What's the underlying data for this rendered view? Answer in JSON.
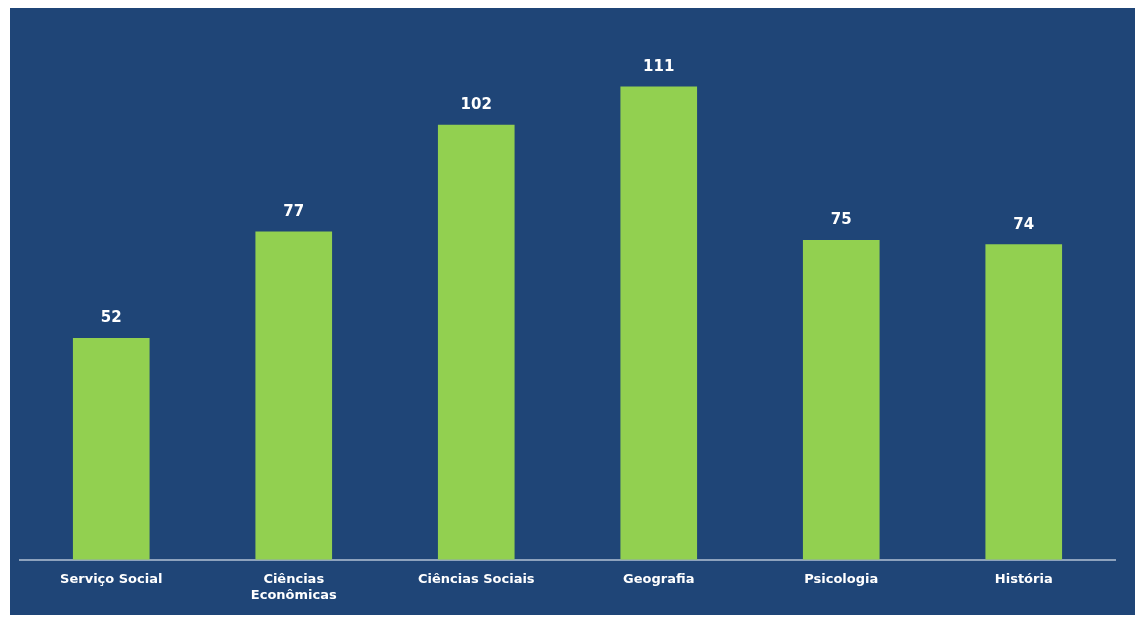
{
  "chart_data": {
    "type": "bar",
    "categories": [
      "Serviço Social",
      "Ciências Econômicas",
      "Ciências Sociais",
      "Geografia",
      "Psicologia",
      "História"
    ],
    "values": [
      52,
      77,
      102,
      111,
      75,
      74
    ],
    "color": "#92d050",
    "data_labels": true,
    "grid": false,
    "legend": false
  }
}
